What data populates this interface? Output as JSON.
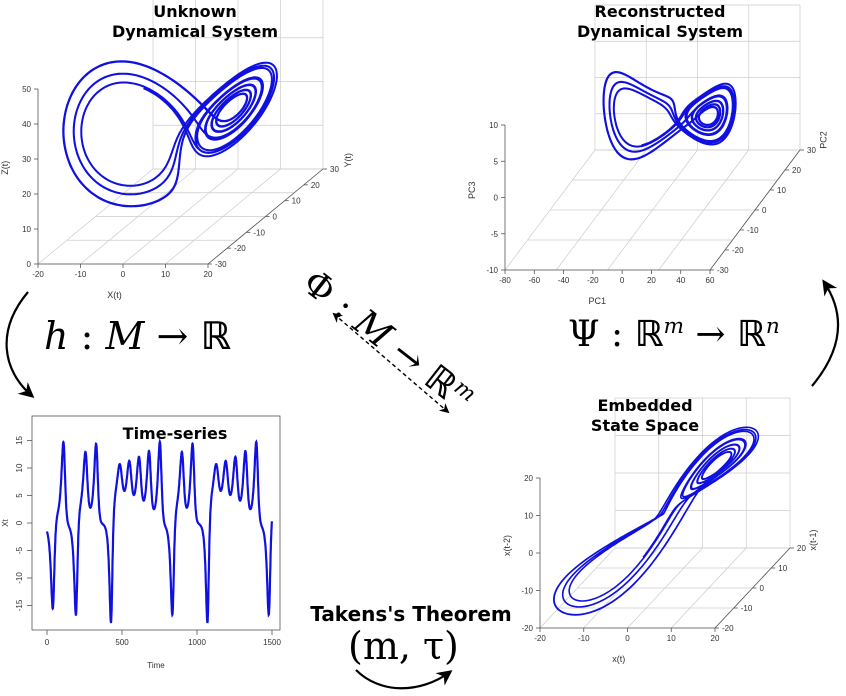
{
  "titles": {
    "unknown_line1": "Unknown",
    "unknown_line2": "Dynamical System",
    "reconstructed_line1": "Reconstructed",
    "reconstructed_line2": "Dynamical System",
    "embedded_line1": "Embedded",
    "embedded_line2": "State Space",
    "timeseries": "Time-series",
    "takens": "Takens's Theorem"
  },
  "maps": {
    "h": {
      "lhs": "h",
      "colon": ":",
      "domain": "M",
      "arrow": "→",
      "codomain": "ℝ"
    },
    "phi": {
      "lhs": "Φ",
      "colon": ":",
      "domain": "M",
      "arrow": "→",
      "codomain": "ℝ",
      "codomain_exp": "m"
    },
    "psi": {
      "lhs": "Ψ",
      "colon": ":",
      "domain": "ℝ",
      "domain_exp": "m",
      "arrow": "→",
      "codomain": "ℝ",
      "codomain_exp": "n"
    },
    "params": "(m, τ)"
  },
  "colors": {
    "curve": "#1010e0",
    "axis": "#555555",
    "grid": "#cccccc",
    "text": "#000000"
  },
  "icons": [
    "curved-arrow-left-down-icon",
    "dashed-double-arrow-icon",
    "curved-arrow-right-up-icon",
    "curved-arrow-bottom-icon"
  ],
  "chart_data": [
    {
      "type": "line",
      "name_id": "unknown-lorenz-3d",
      "xlabel": "X(t)",
      "ylabel": "Y(t)",
      "zlabel": "Z(t)",
      "x_ticks": [
        "-20",
        "-10",
        "0",
        "10",
        "20"
      ],
      "y_ticks": [
        "-30",
        "-20",
        "-10",
        "0",
        "10",
        "20",
        "30"
      ],
      "z_ticks": [
        "0",
        "10",
        "20",
        "30",
        "40",
        "50"
      ]
    },
    {
      "type": "line",
      "name_id": "reconstructed-3d",
      "xlabel": "PC1",
      "ylabel": "PC2",
      "zlabel": "PC3",
      "x_ticks": [
        "-80",
        "-60",
        "-40",
        "-20",
        "0",
        "20",
        "40",
        "60"
      ],
      "y_ticks": [
        "-30",
        "-20",
        "-10",
        "0",
        "10",
        "20",
        "30"
      ],
      "z_ticks": [
        "-10",
        "-5",
        "0",
        "5",
        "10"
      ]
    },
    {
      "type": "line",
      "name_id": "time-series",
      "title": "Time-series",
      "xlabel": "Time",
      "ylabel": "Xt",
      "x_ticks": [
        "0",
        "500",
        "1000",
        "1500"
      ],
      "y_ticks": [
        "-15",
        "-10",
        "-5",
        "0",
        "5",
        "10",
        "15"
      ],
      "xlim": [
        0,
        1500
      ],
      "ylim": [
        -18,
        18
      ]
    },
    {
      "type": "line",
      "name_id": "embedded-3d",
      "xlabel": "x(t)",
      "ylabel": "x(t-1)",
      "zlabel": "x(t-2)",
      "x_ticks": [
        "-20",
        "-10",
        "0",
        "10",
        "20"
      ],
      "y_ticks": [
        "-20",
        "-10",
        "0",
        "10",
        "20"
      ],
      "z_ticks": [
        "-20",
        "-10",
        "0",
        "10",
        "20"
      ]
    }
  ]
}
